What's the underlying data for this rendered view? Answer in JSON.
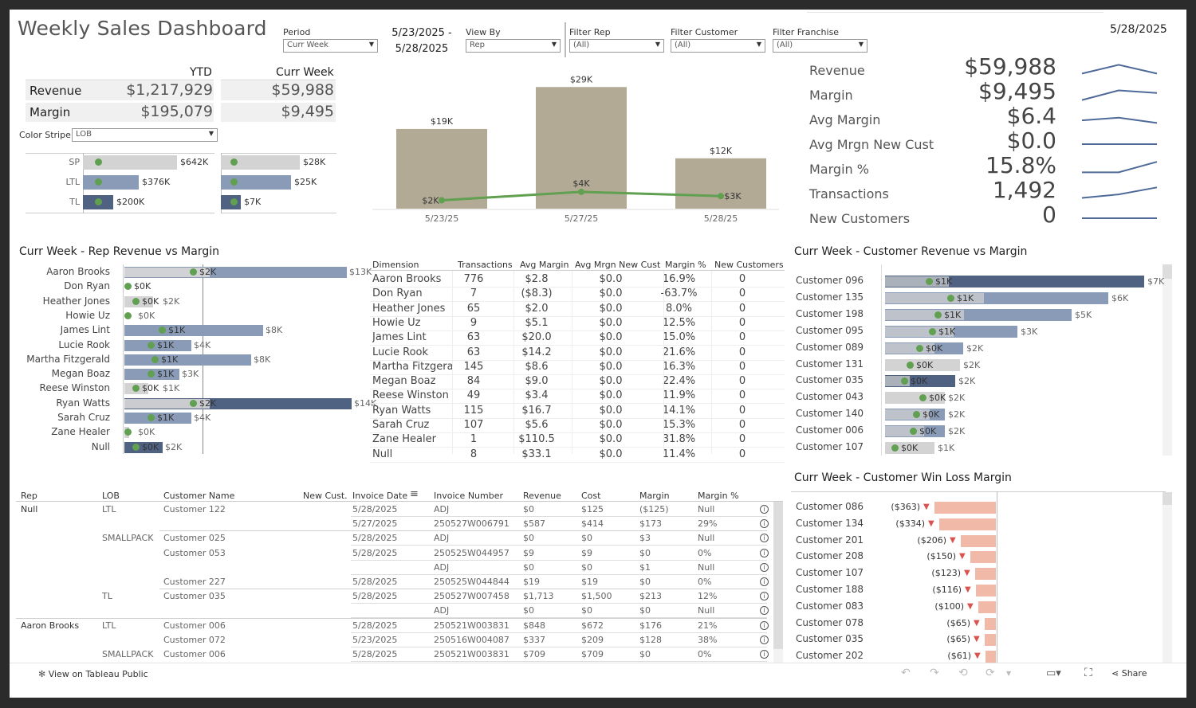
{
  "title": "Weekly Sales Dashboard",
  "report_date": "5/28/2025",
  "filters": {
    "period": {
      "label": "Period",
      "value": "Curr Week"
    },
    "date_range": {
      "start": "5/23/2025 -",
      "end": "5/28/2025"
    },
    "view_by": {
      "label": "View By",
      "value": "Rep"
    },
    "rep": {
      "label": "Filter Rep",
      "value": "(All)"
    },
    "customer": {
      "label": "Filter Customer",
      "value": "(All)"
    },
    "franchise": {
      "label": "Filter Franchise",
      "value": "(All)"
    }
  },
  "summary": {
    "ytd_header": "YTD",
    "curr_header": "Curr Week",
    "revenue_label": "Revenue",
    "margin_label": "Margin",
    "ytd_revenue": "$1,217,929",
    "ytd_margin": "$195,079",
    "curr_revenue": "$59,988",
    "curr_margin": "$9,495",
    "color_stripe_label": "Color Stripe",
    "color_stripe_value": "LOB",
    "lob": [
      {
        "name": "SP",
        "ytd": "$642K",
        "ytd_frac": 0.62,
        "curr": "$28K",
        "curr_frac": 0.76,
        "color": "#d3d3d3"
      },
      {
        "name": "LTL",
        "ytd": "$376K",
        "ytd_frac": 0.37,
        "curr": "$25K",
        "curr_frac": 0.68,
        "color": "#8a9bb7"
      },
      {
        "name": "TL",
        "ytd": "$200K",
        "ytd_frac": 0.2,
        "curr": "$7K",
        "curr_frac": 0.19,
        "color": "#4f6282"
      }
    ]
  },
  "chart_data": {
    "type": "bar",
    "categories": [
      "5/23/25",
      "5/27/25",
      "5/28/25"
    ],
    "series": [
      {
        "values": [
          19,
          29,
          12
        ],
        "labels": [
          "$19K",
          "$29K",
          "$12K"
        ],
        "color": "#b3aa96"
      },
      {
        "values": [
          2,
          4,
          3
        ],
        "labels": [
          "$2K",
          "$4K",
          "$3K"
        ],
        "color": "#60a050"
      }
    ],
    "ylim": [
      0,
      30
    ]
  },
  "kpis": [
    {
      "label": "Revenue",
      "value": "$59,988",
      "trend": [
        0.7,
        0.2,
        0.7
      ]
    },
    {
      "label": "Margin",
      "value": "$9,495",
      "trend": [
        0.8,
        0.25,
        0.4
      ]
    },
    {
      "label": "Avg Margin",
      "value": "$6.4",
      "trend": [
        0.55,
        0.4,
        0.7
      ]
    },
    {
      "label": "Avg Mrgn New Cust",
      "value": "$0.0",
      "trend": [
        0.5,
        0.5,
        0.5
      ]
    },
    {
      "label": "Margin %",
      "value": "15.8%",
      "trend": [
        0.7,
        0.7,
        0.1
      ]
    },
    {
      "label": "Transactions",
      "value": "1,492",
      "trend": [
        0.75,
        0.55,
        0.15
      ]
    },
    {
      "label": "New Customers",
      "value": "0",
      "trend": [
        0.5,
        0.5,
        0.5
      ]
    }
  ],
  "rep_section": {
    "title": "Curr Week - Rep Revenue vs Margin",
    "columns": [
      "Dimension",
      "Transactions",
      "Avg Margin",
      "Avg Mrgn New Cust",
      "Margin %",
      "New Customers"
    ],
    "reps": [
      {
        "name": "Aaron Brooks",
        "rev": "$13K",
        "rev_frac": 0.93,
        "margin": "$2K",
        "margin_frac": 0.17,
        "tx": "776",
        "avg": "$2.8",
        "avg_new": "$0.0",
        "pct": "16.9%",
        "newc": "0",
        "color": "#8a9bb7"
      },
      {
        "name": "Don Ryan",
        "rev": "",
        "rev_frac": 0.0,
        "margin": "$0K",
        "margin_frac": 0.0,
        "tx": "7",
        "avg": "($8.3)",
        "avg_new": "$0.0",
        "pct": "-63.7%",
        "newc": "0",
        "color": "#d3d3d3"
      },
      {
        "name": "Heather Jones",
        "rev": "$2K",
        "rev_frac": 0.12,
        "margin": "$0K",
        "margin_frac": 0.02,
        "tx": "65",
        "avg": "$2.0",
        "avg_new": "$0.0",
        "pct": "8.0%",
        "newc": "0",
        "color": "#d3d3d3"
      },
      {
        "name": "Howie Uz",
        "rev": "$0K",
        "rev_frac": 0.0,
        "margin": "",
        "margin_frac": 0.0,
        "tx": "9",
        "avg": "$5.1",
        "avg_new": "$0.0",
        "pct": "12.5%",
        "newc": "0",
        "color": "#d3d3d3"
      },
      {
        "name": "James Lint",
        "rev": "$8K",
        "rev_frac": 0.58,
        "margin": "$1K",
        "margin_frac": 0.09,
        "tx": "63",
        "avg": "$20.0",
        "avg_new": "$0.0",
        "pct": "15.0%",
        "newc": "0",
        "color": "#8a9bb7"
      },
      {
        "name": "Lucie Rook",
        "rev": "$4K",
        "rev_frac": 0.28,
        "margin": "$1K",
        "margin_frac": 0.06,
        "tx": "63",
        "avg": "$14.2",
        "avg_new": "$0.0",
        "pct": "21.6%",
        "newc": "0",
        "color": "#8a9bb7"
      },
      {
        "name": "Martha Fitzgerald",
        "rev": "$8K",
        "rev_frac": 0.53,
        "margin": "$1K",
        "margin_frac": 0.07,
        "tx": "145",
        "avg": "$8.6",
        "avg_new": "$0.0",
        "pct": "16.3%",
        "newc": "0",
        "color": "#8a9bb7"
      },
      {
        "name": "Megan Boaz",
        "rev": "$3K",
        "rev_frac": 0.23,
        "margin": "$1K",
        "margin_frac": 0.06,
        "tx": "84",
        "avg": "$9.0",
        "avg_new": "$0.0",
        "pct": "22.4%",
        "newc": "0",
        "color": "#8a9bb7"
      },
      {
        "name": "Reese Winston",
        "rev": "$1K",
        "rev_frac": 0.1,
        "margin": "$0K",
        "margin_frac": 0.02,
        "tx": "49",
        "avg": "$3.4",
        "avg_new": "$0.0",
        "pct": "11.9%",
        "newc": "0",
        "color": "#d3d3d3"
      },
      {
        "name": "Ryan Watts",
        "rev": "$14K",
        "rev_frac": 0.95,
        "margin": "$2K",
        "margin_frac": 0.17,
        "tx": "115",
        "avg": "$16.7",
        "avg_new": "$0.0",
        "pct": "14.1%",
        "newc": "0",
        "color": "#4f6282"
      },
      {
        "name": "Sarah Cruz",
        "rev": "$4K",
        "rev_frac": 0.28,
        "margin": "$1K",
        "margin_frac": 0.06,
        "tx": "107",
        "avg": "$5.6",
        "avg_new": "$0.0",
        "pct": "15.3%",
        "newc": "0",
        "color": "#8a9bb7"
      },
      {
        "name": "Zane Healer",
        "rev": "$0K",
        "rev_frac": 0.02,
        "margin": "",
        "margin_frac": 0.0,
        "tx": "1",
        "avg": "$110.5",
        "avg_new": "$0.0",
        "pct": "31.8%",
        "newc": "0",
        "color": "#d3d3d3"
      },
      {
        "name": "Null",
        "rev": "$2K",
        "rev_frac": 0.16,
        "margin": "$0K",
        "margin_frac": 0.02,
        "tx": "8",
        "avg": "$33.1",
        "avg_new": "$0.0",
        "pct": "11.4%",
        "newc": "0",
        "color": "#4f6282"
      }
    ]
  },
  "cust_section": {
    "title": "Curr Week - Customer Revenue vs Margin",
    "customers": [
      {
        "name": "Customer 096",
        "rev": "$7K",
        "rev_frac": 1.0,
        "margin": "$1K",
        "margin_frac": 0.13,
        "color": "#4f6282"
      },
      {
        "name": "Customer 135",
        "rev": "$6K",
        "rev_frac": 0.86,
        "margin": "$1K",
        "margin_frac": 0.2,
        "color": "#8a9bb7"
      },
      {
        "name": "Customer 198",
        "rev": "$5K",
        "rev_frac": 0.72,
        "margin": "$1K",
        "margin_frac": 0.16,
        "color": "#8a9bb7"
      },
      {
        "name": "Customer 095",
        "rev": "$3K",
        "rev_frac": 0.51,
        "margin": "$1K",
        "margin_frac": 0.14,
        "color": "#8a9bb7"
      },
      {
        "name": "Customer 089",
        "rev": "$2K",
        "rev_frac": 0.3,
        "margin": "$0K",
        "margin_frac": 0.1,
        "color": "#8a9bb7"
      },
      {
        "name": "Customer 131",
        "rev": "$2K",
        "rev_frac": 0.29,
        "margin": "$0K",
        "margin_frac": 0.07,
        "color": "#d3d3d3"
      },
      {
        "name": "Customer 035",
        "rev": "$2K",
        "rev_frac": 0.27,
        "margin": "$0K",
        "margin_frac": 0.05,
        "color": "#4f6282"
      },
      {
        "name": "Customer 043",
        "rev": "$2K",
        "rev_frac": 0.23,
        "margin": "$0K",
        "margin_frac": 0.11,
        "color": "#d3d3d3"
      },
      {
        "name": "Customer 140",
        "rev": "$2K",
        "rev_frac": 0.23,
        "margin": "$0K",
        "margin_frac": 0.09,
        "color": "#8a9bb7"
      },
      {
        "name": "Customer 006",
        "rev": "$2K",
        "rev_frac": 0.23,
        "margin": "$0K",
        "margin_frac": 0.08,
        "color": "#8a9bb7"
      },
      {
        "name": "Customer 107",
        "rev": "$1K",
        "rev_frac": 0.19,
        "margin": "$0K",
        "margin_frac": 0.02,
        "color": "#d3d3d3"
      }
    ]
  },
  "winloss": {
    "title": "Curr Week - Customer Win Loss Margin",
    "rows": [
      {
        "name": "Customer 086",
        "value": "($363)",
        "frac": 1.0
      },
      {
        "name": "Customer 134",
        "value": "($334)",
        "frac": 0.92
      },
      {
        "name": "Customer 201",
        "value": "($206)",
        "frac": 0.57
      },
      {
        "name": "Customer 208",
        "value": "($150)",
        "frac": 0.41
      },
      {
        "name": "Customer 107",
        "value": "($123)",
        "frac": 0.34
      },
      {
        "name": "Customer 188",
        "value": "($116)",
        "frac": 0.32
      },
      {
        "name": "Customer 083",
        "value": "($100)",
        "frac": 0.28
      },
      {
        "name": "Customer 078",
        "value": "($65)",
        "frac": 0.18
      },
      {
        "name": "Customer 035",
        "value": "($65)",
        "frac": 0.18
      },
      {
        "name": "Customer 202",
        "value": "($61)",
        "frac": 0.17
      }
    ]
  },
  "detail": {
    "columns": [
      "Rep",
      "LOB",
      "Customer Name",
      "New Cust.",
      "Invoice Date",
      "Invoice Number",
      "Revenue",
      "Cost",
      "Margin",
      "Margin %"
    ],
    "rows": [
      {
        "rep": "Null",
        "lob": "LTL",
        "cust": "Customer 122",
        "date": "5/28/2025",
        "inv": "ADJ",
        "rev": "$0",
        "cost": "$125",
        "margin": "($125)",
        "pct": "Null"
      },
      {
        "rep": "",
        "lob": "",
        "cust": "",
        "date": "5/27/2025",
        "inv": "250527W006791",
        "rev": "$587",
        "cost": "$414",
        "margin": "$173",
        "pct": "29%"
      },
      {
        "rep": "",
        "lob": "SMALLPACK",
        "cust": "Customer 025",
        "date": "5/28/2025",
        "inv": "ADJ",
        "rev": "$0",
        "cost": "$0",
        "margin": "$3",
        "pct": "Null"
      },
      {
        "rep": "",
        "lob": "",
        "cust": "Customer 053",
        "date": "5/28/2025",
        "inv": "250525W044957",
        "rev": "$9",
        "cost": "$9",
        "margin": "$0",
        "pct": "0%"
      },
      {
        "rep": "",
        "lob": "",
        "cust": "",
        "date": "",
        "inv": "ADJ",
        "rev": "$0",
        "cost": "$0",
        "margin": "$1",
        "pct": "Null"
      },
      {
        "rep": "",
        "lob": "",
        "cust": "Customer 227",
        "date": "5/28/2025",
        "inv": "250525W044844",
        "rev": "$19",
        "cost": "$19",
        "margin": "$0",
        "pct": "0%"
      },
      {
        "rep": "",
        "lob": "TL",
        "cust": "Customer 035",
        "date": "5/28/2025",
        "inv": "250527W007458",
        "rev": "$1,713",
        "cost": "$1,500",
        "margin": "$213",
        "pct": "12%"
      },
      {
        "rep": "",
        "lob": "",
        "cust": "",
        "date": "",
        "inv": "ADJ",
        "rev": "$0",
        "cost": "$0",
        "margin": "$0",
        "pct": "Null"
      },
      {
        "rep": "Aaron Brooks",
        "lob": "LTL",
        "cust": "Customer 006",
        "date": "5/28/2025",
        "inv": "250521W003831",
        "rev": "$848",
        "cost": "$672",
        "margin": "$176",
        "pct": "21%"
      },
      {
        "rep": "",
        "lob": "",
        "cust": "Customer 072",
        "date": "5/23/2025",
        "inv": "250516W004087",
        "rev": "$337",
        "cost": "$209",
        "margin": "$128",
        "pct": "38%"
      },
      {
        "rep": "",
        "lob": "SMALLPACK",
        "cust": "Customer 006",
        "date": "5/28/2025",
        "inv": "250521W003831",
        "rev": "$709",
        "cost": "$709",
        "margin": "$0",
        "pct": "0%"
      }
    ]
  },
  "footer": {
    "tableau_link": "View on Tableau Public",
    "share_label": "Share"
  }
}
